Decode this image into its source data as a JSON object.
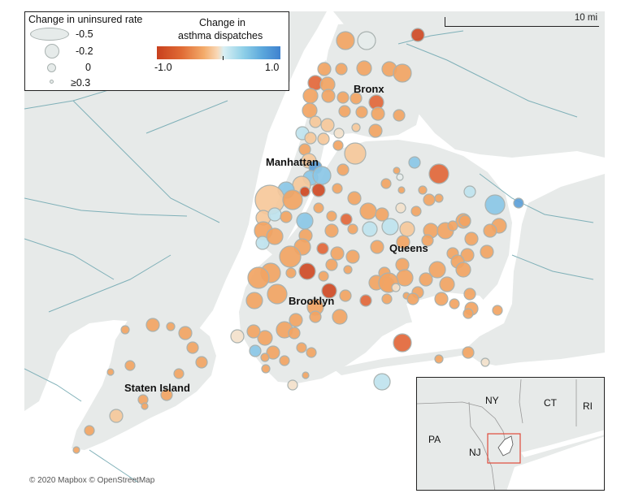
{
  "legend": {
    "size_title": "Change in uninsured rate",
    "size_items": [
      {
        "label": "-0.5",
        "value": -0.5
      },
      {
        "label": "-0.2",
        "value": -0.2
      },
      {
        "label": "0",
        "value": 0
      },
      {
        "label": "≥0.3",
        "value": 0.3
      }
    ],
    "color_title_line1": "Change in",
    "color_title_line2": "asthma dispatches",
    "color_min": "-1.0",
    "color_max": "1.0"
  },
  "scale_bar": {
    "label": "10 mi"
  },
  "boroughs": {
    "bronx": "Bronx",
    "manhattan": "Manhattan",
    "queens": "Queens",
    "brooklyn": "Brooklyn",
    "staten_island": "Staten Island"
  },
  "inset": {
    "ny": "NY",
    "ct": "CT",
    "ri": "RI",
    "pa": "PA",
    "nj": "NJ"
  },
  "attribution": "© 2020 Mapbox © OpenStreetMap",
  "colors": {
    "water": "#ffffff",
    "land": "#e7eae9",
    "neg_strong": "#c8401e",
    "neg_mid": "#f0a060",
    "neutral": "#f8ddc0",
    "pos_mid": "#8fd0e8",
    "pos_strong": "#3f82cf",
    "circle_stroke": "#a9b2b0"
  }
}
